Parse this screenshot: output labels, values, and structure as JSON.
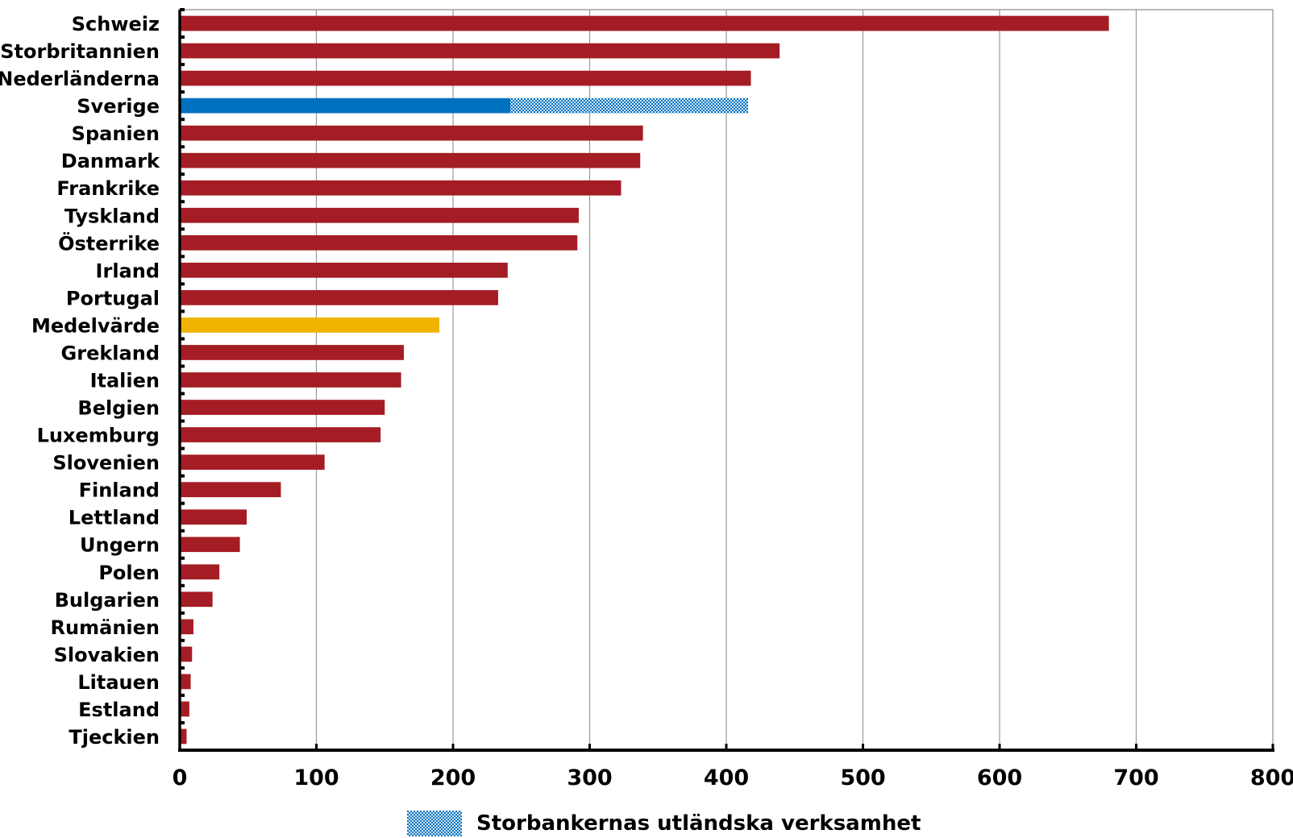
{
  "chart_data": {
    "type": "bar",
    "orientation": "horizontal",
    "stacked": true,
    "categories": [
      "Schweiz",
      "Storbritannien",
      "Nederländerna",
      "Sverige",
      "Spanien",
      "Danmark",
      "Frankrike",
      "Tyskland",
      "Österrike",
      "Irland",
      "Portugal",
      "Medelvärde",
      "Grekland",
      "Italien",
      "Belgien",
      "Luxemburg",
      "Slovenien",
      "Finland",
      "Lettland",
      "Ungern",
      "Polen",
      "Bulgarien",
      "Rumänien",
      "Slovakien",
      "Litauen",
      "Estland",
      "Tjeckien"
    ],
    "series": [
      {
        "values": [
          680,
          439,
          418,
          242,
          339,
          337,
          323,
          292,
          291,
          240,
          233,
          190,
          164,
          162,
          150,
          147,
          106,
          74,
          49,
          44,
          29,
          24,
          10,
          9,
          8,
          7,
          5
        ],
        "colors": {
          "default": "#a51d24",
          "Sverige": "#0070c0",
          "Medelvärde": "#f0b400"
        }
      },
      {
        "name": "Storbankernas utländska verksamhet",
        "values": [
          0,
          0,
          0,
          174,
          0,
          0,
          0,
          0,
          0,
          0,
          0,
          0,
          0,
          0,
          0,
          0,
          0,
          0,
          0,
          0,
          0,
          0,
          0,
          0,
          0,
          0,
          0
        ],
        "color": "#0070c0",
        "pattern": "dotted"
      }
    ],
    "xlim": [
      0,
      800
    ],
    "xticks": [
      "0",
      "100",
      "200",
      "300",
      "400",
      "500",
      "600",
      "700",
      "800"
    ],
    "xlabel": "",
    "ylabel": "",
    "title": "",
    "grid": "vertical",
    "legend": {
      "placement": "bottom-center",
      "entries": [
        "Storbankernas utländska verksamhet"
      ]
    }
  }
}
